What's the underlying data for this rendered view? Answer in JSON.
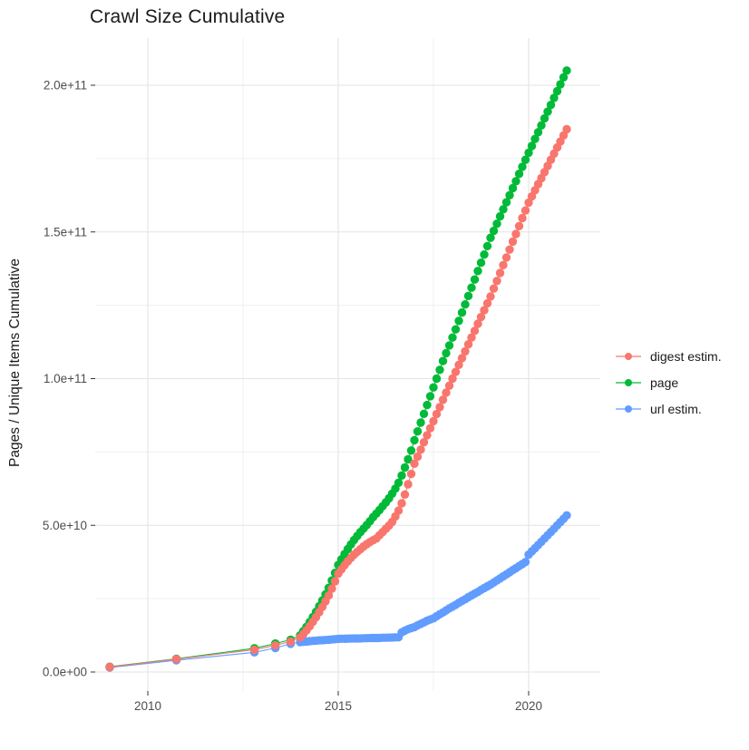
{
  "title": "Crawl Size Cumulative",
  "y_axis": {
    "label": "Pages / Unique Items Cumulative",
    "tick_labels": [
      "0.0e+00",
      "5.0e+10",
      "1.0e+11",
      "1.5e+11",
      "2.0e+11"
    ],
    "tick_values_e9": [
      0,
      50,
      100,
      150,
      200
    ],
    "minor_values_e9": [
      25,
      75,
      125,
      175
    ]
  },
  "x_axis": {
    "tick_labels": [
      "2010",
      "2015",
      "2020"
    ],
    "tick_values": [
      2010,
      2015,
      2020
    ],
    "minor_values": [
      2012.5,
      2017.5
    ]
  },
  "legend": {
    "entries": [
      {
        "label": "digest estim.",
        "color": "#F8766D"
      },
      {
        "label": "page",
        "color": "#00BA38"
      },
      {
        "label": "url estim.",
        "color": "#619CFF"
      }
    ]
  },
  "chart_data": {
    "type": "line",
    "title": "Crawl Size Cumulative",
    "xlabel": "",
    "ylabel": "Pages / Unique Items Cumulative",
    "values_unit": "items, stored as multiples of 1e9",
    "xlim": [
      2008.3,
      2021.9
    ],
    "ylim_e9": [
      0,
      215
    ],
    "grid": true,
    "legend_position": "right",
    "x": [
      2009.0,
      2010.75,
      2012.8,
      2013.35,
      2013.75,
      2014.0,
      2014.083,
      2014.167,
      2014.25,
      2014.333,
      2014.417,
      2014.5,
      2014.583,
      2014.667,
      2014.75,
      2014.833,
      2014.917,
      2015.0,
      2015.083,
      2015.167,
      2015.25,
      2015.333,
      2015.417,
      2015.5,
      2015.583,
      2015.667,
      2015.75,
      2015.833,
      2015.917,
      2016.0,
      2016.083,
      2016.167,
      2016.25,
      2016.333,
      2016.417,
      2016.5,
      2016.583,
      2016.667,
      2016.75,
      2016.833,
      2016.917,
      2017.0,
      2017.083,
      2017.167,
      2017.25,
      2017.333,
      2017.417,
      2017.5,
      2017.583,
      2017.667,
      2017.75,
      2017.833,
      2017.917,
      2018.0,
      2018.083,
      2018.167,
      2018.25,
      2018.333,
      2018.417,
      2018.5,
      2018.583,
      2018.667,
      2018.75,
      2018.833,
      2018.917,
      2019.0,
      2019.083,
      2019.167,
      2019.25,
      2019.333,
      2019.417,
      2019.5,
      2019.583,
      2019.667,
      2019.75,
      2019.833,
      2019.917,
      2020.0,
      2020.083,
      2020.167,
      2020.25,
      2020.333,
      2020.417,
      2020.5,
      2020.583,
      2020.667,
      2020.75,
      2020.833,
      2020.917,
      2021.0
    ],
    "series": [
      {
        "name": "digest estim.",
        "color": "#F8766D",
        "values_e9": [
          1.7,
          4.4,
          7.6,
          9.1,
          10.4,
          11.8,
          12.9,
          14.2,
          15.6,
          17.1,
          18.7,
          20.4,
          22.2,
          24.1,
          26.1,
          28.4,
          30.9,
          33.5,
          35.0,
          36.4,
          37.7,
          38.9,
          40.0,
          41.0,
          41.9,
          42.8,
          43.6,
          44.3,
          44.9,
          45.5,
          46.6,
          47.7,
          48.8,
          49.9,
          51.2,
          53.0,
          55.0,
          57.5,
          60.5,
          64.0,
          67.5,
          71.0,
          73.4,
          75.8,
          78.3,
          80.7,
          83.1,
          85.5,
          87.9,
          90.3,
          92.8,
          95.2,
          97.6,
          100.0,
          102.3,
          104.7,
          107.0,
          109.3,
          111.7,
          114.0,
          116.3,
          118.7,
          121.0,
          123.3,
          125.7,
          128.0,
          130.7,
          133.3,
          136.0,
          138.7,
          141.3,
          144.0,
          146.7,
          149.3,
          152.0,
          154.7,
          157.3,
          160.0,
          162.1,
          164.2,
          166.3,
          168.3,
          170.4,
          172.5,
          174.6,
          176.7,
          178.8,
          180.8,
          182.9,
          185.0
        ]
      },
      {
        "name": "page",
        "color": "#00BA38",
        "values_e9": [
          1.8,
          4.5,
          8.1,
          9.7,
          11.0,
          12.5,
          13.9,
          15.4,
          17.0,
          18.7,
          20.5,
          22.4,
          24.4,
          26.5,
          28.7,
          31.2,
          33.8,
          36.5,
          38.4,
          40.2,
          41.9,
          43.5,
          45.0,
          46.4,
          47.7,
          48.9,
          50.1,
          51.4,
          52.8,
          54.0,
          55.2,
          56.5,
          57.8,
          59.2,
          60.8,
          62.5,
          64.5,
          67.0,
          69.7,
          72.5,
          75.5,
          79.0,
          82.0,
          85.0,
          88.0,
          91.0,
          94.0,
          97.0,
          100.0,
          103.0,
          106.0,
          108.7,
          111.3,
          114.0,
          116.8,
          119.7,
          122.5,
          125.3,
          128.2,
          131.0,
          133.8,
          136.7,
          139.5,
          142.3,
          145.2,
          148.0,
          150.4,
          152.8,
          155.3,
          157.7,
          160.1,
          162.5,
          164.9,
          167.3,
          169.8,
          172.2,
          174.6,
          177.0,
          179.3,
          181.7,
          184.0,
          186.3,
          188.7,
          191.0,
          193.3,
          195.7,
          198.0,
          200.3,
          202.7,
          205.0
        ]
      },
      {
        "name": "url estim.",
        "color": "#619CFF",
        "values_e9": [
          1.5,
          4.0,
          6.7,
          8.2,
          9.6,
          10.2,
          10.3,
          10.4,
          10.5,
          10.6,
          10.7,
          10.8,
          10.85,
          10.9,
          11.0,
          11.1,
          11.2,
          11.3,
          11.33,
          11.35,
          11.38,
          11.4,
          11.43,
          11.45,
          11.48,
          11.5,
          11.53,
          11.55,
          11.58,
          11.6,
          11.63,
          11.67,
          11.7,
          11.73,
          11.77,
          11.8,
          11.85,
          13.5,
          14.1,
          14.6,
          15.0,
          15.3,
          15.9,
          16.4,
          16.9,
          17.5,
          17.9,
          18.3,
          19.0,
          19.7,
          20.3,
          21.0,
          21.7,
          22.3,
          22.9,
          23.6,
          24.2,
          24.8,
          25.5,
          26.1,
          26.7,
          27.3,
          28.0,
          28.6,
          29.2,
          29.8,
          30.5,
          31.2,
          31.9,
          32.6,
          33.3,
          34.0,
          34.7,
          35.4,
          36.1,
          36.8,
          37.5,
          40.0,
          41.1,
          42.2,
          43.3,
          44.4,
          45.5,
          46.6,
          47.7,
          48.8,
          50.0,
          51.1,
          52.2,
          53.4
        ]
      }
    ]
  },
  "style": {
    "grid_major_color": "#e3e3e3",
    "grid_minor_color": "#f0f0f0",
    "tick_mark_color": "#333333",
    "tick_label_color": "#4d4d4d",
    "background": "#ffffff"
  }
}
